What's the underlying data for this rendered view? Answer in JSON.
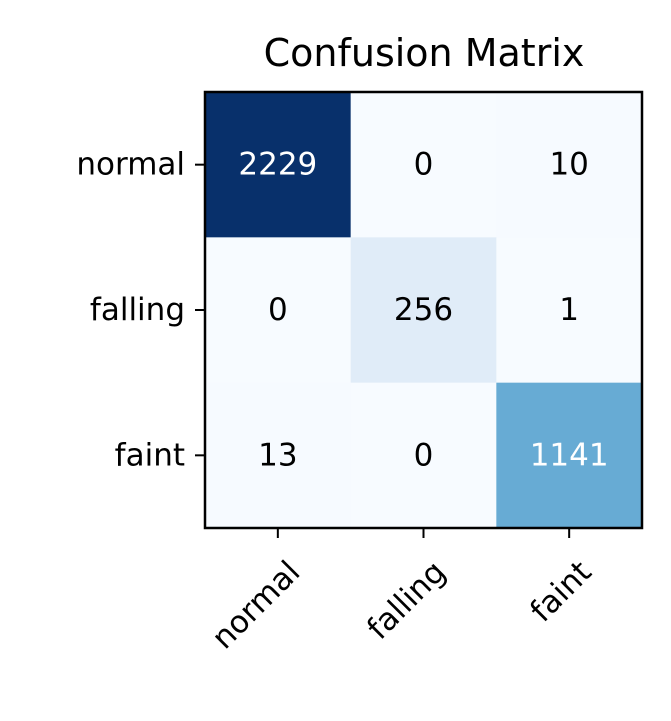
{
  "chart_data": {
    "type": "heatmap",
    "title": "Confusion Matrix",
    "xlabel": "",
    "ylabel": "",
    "x_categories": [
      "normal",
      "falling",
      "faint"
    ],
    "y_categories": [
      "normal",
      "falling",
      "faint"
    ],
    "matrix": [
      [
        2229,
        0,
        10
      ],
      [
        0,
        256,
        1
      ],
      [
        13,
        0,
        1141
      ]
    ],
    "colormap": "Blues",
    "color_low": "#f7fbff",
    "color_high": "#08306b",
    "text_color_dark": "#000000",
    "text_color_light": "#ffffff",
    "grid": false,
    "x_tick_rotation_deg": 45
  }
}
